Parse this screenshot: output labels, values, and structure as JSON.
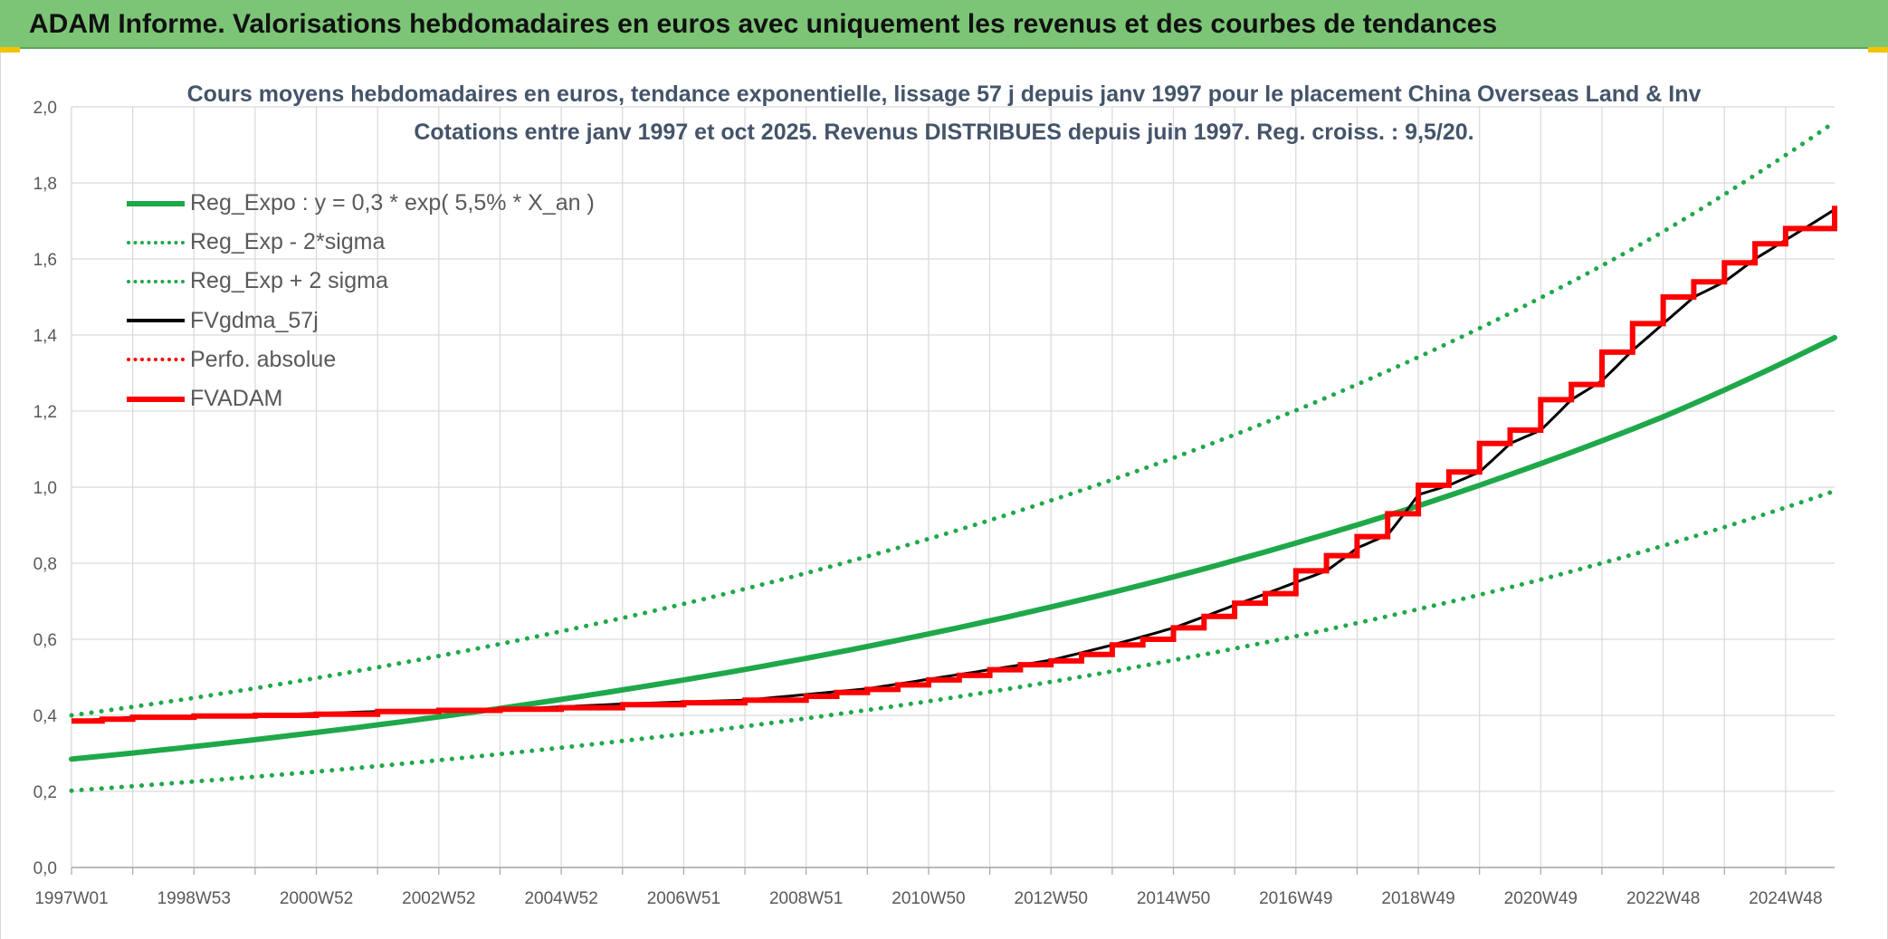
{
  "banner": {
    "title": "ADAM Informe. Valorisations hebdomadaires en euros avec uniquement les revenus et des courbes de tendances"
  },
  "chart_data": {
    "type": "line",
    "title": "Cours moyens hebdomadaires en euros, tendance exponentielle, lissage 57 j depuis janv 1997 pour le placement China Overseas Land & Inv",
    "subtitle": "Cotations entre janv 1997 et oct 2025. Revenus DISTRIBUES depuis juin 1997. Reg. croiss. : 9,5/20.",
    "xlabel": "",
    "ylabel": "",
    "ylim": [
      0,
      2.0
    ],
    "xlim": [
      1997.0,
      2025.8
    ],
    "y_ticks": [
      "0,0",
      "0,2",
      "0,4",
      "0,6",
      "0,8",
      "1,0",
      "1,2",
      "1,4",
      "1,6",
      "1,8",
      "2,0"
    ],
    "x_tick_labels": [
      {
        "label": "1997W01",
        "t": 1997.0
      },
      {
        "label": "1998W53",
        "t": 1999.0
      },
      {
        "label": "2000W52",
        "t": 2001.0
      },
      {
        "label": "2002W52",
        "t": 2003.0
      },
      {
        "label": "2004W52",
        "t": 2005.0
      },
      {
        "label": "2006W51",
        "t": 2007.0
      },
      {
        "label": "2008W51",
        "t": 2009.0
      },
      {
        "label": "2010W50",
        "t": 2011.0
      },
      {
        "label": "2012W50",
        "t": 2013.0
      },
      {
        "label": "2014W50",
        "t": 2015.0
      },
      {
        "label": "2016W49",
        "t": 2017.0
      },
      {
        "label": "2018W49",
        "t": 2019.0
      },
      {
        "label": "2020W49",
        "t": 2021.0
      },
      {
        "label": "2022W48",
        "t": 2023.0
      },
      {
        "label": "2024W48",
        "t": 2025.0
      }
    ],
    "grid": true,
    "legend_position": "top-left",
    "series": [
      {
        "name": "Reg_Expo : y = 0,3 * exp( 5,5% *  X_an )",
        "color": "#1fa84a",
        "style": "solid",
        "x": [
          1997.0,
          1999.0,
          2001.0,
          2003.0,
          2005.0,
          2007.0,
          2009.0,
          2011.0,
          2013.0,
          2015.0,
          2017.0,
          2019.0,
          2021.0,
          2023.0,
          2025.8
        ],
        "y": [
          0.285,
          0.318,
          0.355,
          0.396,
          0.442,
          0.493,
          0.55,
          0.614,
          0.685,
          0.764,
          0.853,
          0.951,
          1.062,
          1.185,
          1.393
        ]
      },
      {
        "name": "Reg_Exp - 2*sigma",
        "color": "#1fa84a",
        "style": "dotted",
        "x": [
          1997.0,
          1999.0,
          2001.0,
          2003.0,
          2005.0,
          2007.0,
          2009.0,
          2011.0,
          2013.0,
          2015.0,
          2017.0,
          2019.0,
          2021.0,
          2023.0,
          2025.8
        ],
        "y": [
          0.202,
          0.226,
          0.252,
          0.282,
          0.315,
          0.351,
          0.392,
          0.437,
          0.488,
          0.545,
          0.608,
          0.679,
          0.757,
          0.846,
          0.99
        ]
      },
      {
        "name": "Reg_Exp + 2 sigma",
        "color": "#1fa84a",
        "style": "dotted",
        "x": [
          1997.0,
          1999.0,
          2001.0,
          2003.0,
          2005.0,
          2007.0,
          2009.0,
          2011.0,
          2013.0,
          2015.0,
          2017.0,
          2019.0,
          2021.0,
          2023.0,
          2025.8
        ],
        "y": [
          0.4,
          0.446,
          0.498,
          0.556,
          0.621,
          0.693,
          0.774,
          0.864,
          0.965,
          1.077,
          1.202,
          1.342,
          1.498,
          1.672,
          1.96
        ]
      },
      {
        "name": "FVgdma_57j",
        "color": "#000000",
        "style": "solid",
        "x": [
          1997.0,
          1998.0,
          2000.0,
          2002.0,
          2004.0,
          2006.0,
          2008.0,
          2010.0,
          2011.0,
          2012.0,
          2013.0,
          2014.0,
          2015.0,
          2016.0,
          2017.0,
          2017.5,
          2018.0,
          2018.5,
          2019.0,
          2019.5,
          2020.0,
          2020.5,
          2021.0,
          2021.5,
          2022.0,
          2022.5,
          2023.0,
          2023.5,
          2024.0,
          2024.5,
          2025.0,
          2025.8
        ],
        "y": [
          0.385,
          0.395,
          0.4,
          0.41,
          0.415,
          0.43,
          0.44,
          0.47,
          0.495,
          0.52,
          0.545,
          0.585,
          0.63,
          0.69,
          0.75,
          0.78,
          0.84,
          0.875,
          0.98,
          1.005,
          1.04,
          1.115,
          1.15,
          1.23,
          1.28,
          1.36,
          1.43,
          1.5,
          1.54,
          1.6,
          1.65,
          1.73
        ]
      },
      {
        "name": "Perfo. absolue",
        "color": "#ff0000",
        "style": "dotted",
        "x": [],
        "y": []
      },
      {
        "name": "FVADAM",
        "color": "#ff0000",
        "style": "step",
        "x": [
          1997.0,
          1997.5,
          1998.0,
          1999.0,
          2000.0,
          2001.0,
          2002.0,
          2003.0,
          2004.0,
          2005.0,
          2006.0,
          2007.0,
          2008.0,
          2009.0,
          2009.5,
          2010.0,
          2010.5,
          2011.0,
          2011.5,
          2012.0,
          2012.5,
          2013.0,
          2013.5,
          2014.0,
          2014.5,
          2015.0,
          2015.5,
          2016.0,
          2016.5,
          2017.0,
          2017.5,
          2018.0,
          2018.5,
          2019.0,
          2019.5,
          2020.0,
          2020.5,
          2021.0,
          2021.5,
          2022.0,
          2022.5,
          2023.0,
          2023.5,
          2024.0,
          2024.5,
          2025.0,
          2025.8
        ],
        "y": [
          0.385,
          0.39,
          0.395,
          0.398,
          0.4,
          0.403,
          0.41,
          0.413,
          0.416,
          0.42,
          0.428,
          0.433,
          0.44,
          0.45,
          0.46,
          0.468,
          0.48,
          0.493,
          0.505,
          0.52,
          0.533,
          0.543,
          0.56,
          0.585,
          0.6,
          0.63,
          0.66,
          0.695,
          0.72,
          0.78,
          0.82,
          0.87,
          0.93,
          1.005,
          1.04,
          1.115,
          1.15,
          1.23,
          1.27,
          1.355,
          1.43,
          1.5,
          1.54,
          1.59,
          1.64,
          1.68,
          1.74
        ]
      }
    ]
  }
}
